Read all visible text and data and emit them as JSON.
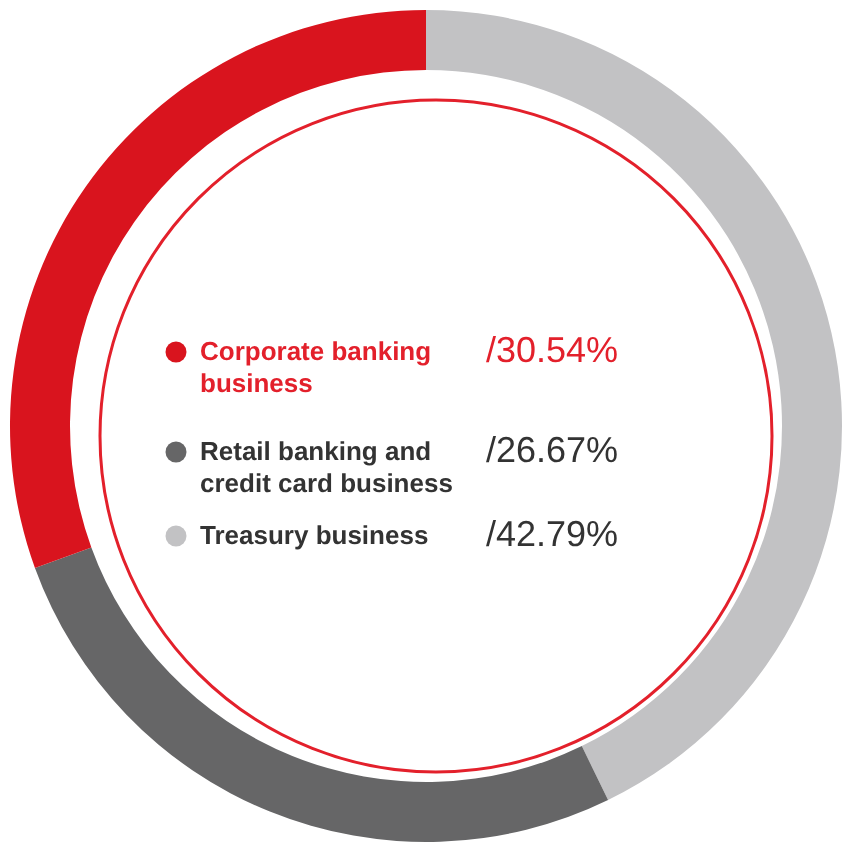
{
  "chart_data": {
    "type": "donut",
    "categories": [
      "Treasury business",
      "Retail banking and credit card business",
      "Corporate banking business"
    ],
    "values": [
      42.79,
      26.67,
      30.54
    ],
    "colors": [
      "#c2c2c4",
      "#666667",
      "#d9141e"
    ],
    "value_labels": [
      "/42.79%",
      "/26.67%",
      "/30.54%"
    ],
    "legend": "center"
  }
}
